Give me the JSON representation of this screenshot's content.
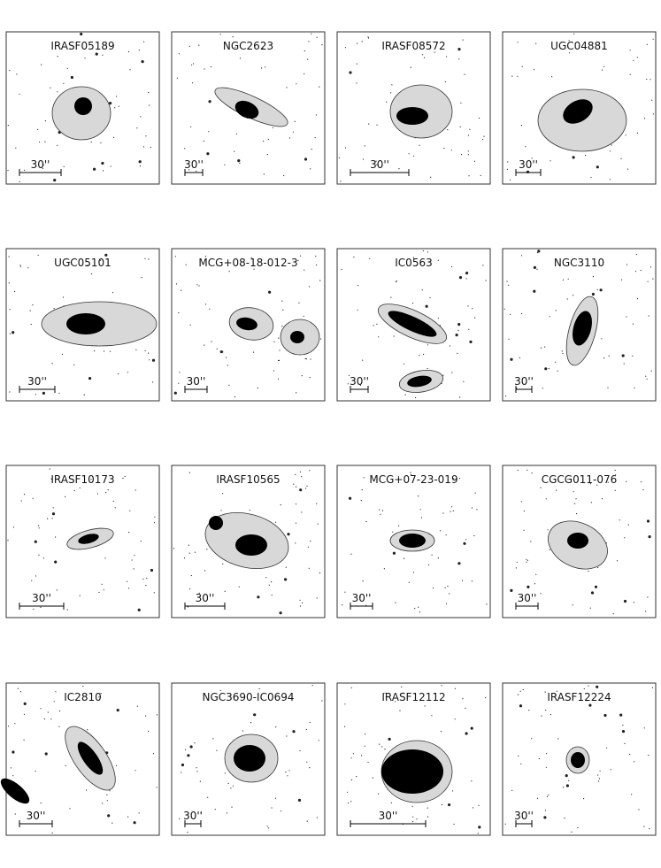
{
  "panels": [
    {
      "name": "IRASF05189",
      "scale": "30''"
    },
    {
      "name": "NGC2623",
      "scale": "30''"
    },
    {
      "name": "IRASF08572",
      "scale": "30''"
    },
    {
      "name": "UGC04881",
      "scale": "30''"
    },
    {
      "name": "UGC05101",
      "scale": "30''"
    },
    {
      "name": "MCG+08-18-012-3",
      "scale": "30''"
    },
    {
      "name": "IC0563",
      "scale": "30''"
    },
    {
      "name": "NGC3110",
      "scale": "30''"
    },
    {
      "name": "IRASF10173",
      "scale": "30''"
    },
    {
      "name": "IRASF10565",
      "scale": "30''"
    },
    {
      "name": "MCG+07-23-019",
      "scale": "30''"
    },
    {
      "name": "CGCG011-076",
      "scale": "30''"
    },
    {
      "name": "IC2810",
      "scale": "30''"
    },
    {
      "name": "NGC3690-IC0694",
      "scale": "30''"
    },
    {
      "name": "IRASF12112",
      "scale": "30''"
    },
    {
      "name": "IRASF12224",
      "scale": "30''"
    }
  ]
}
